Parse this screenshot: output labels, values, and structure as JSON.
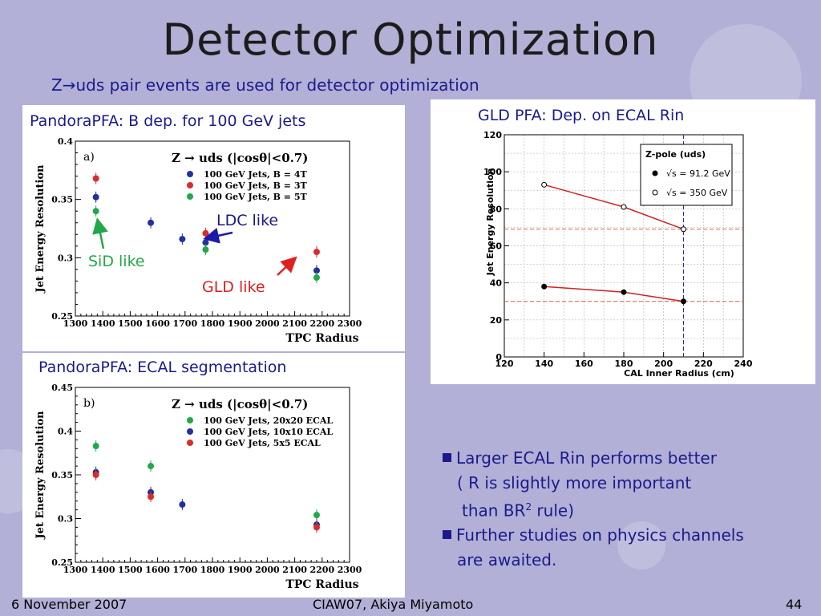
{
  "slide": {
    "title": "Detector Optimization",
    "subtitle": "Z→uds pair events are used for detector optimization"
  },
  "annotations": {
    "ldc": "LDC like",
    "sid": "SiD like",
    "gld": "GLD like"
  },
  "bullets": {
    "b1_line1": "Larger ECAL Rin performs better",
    "b1_line2": "( R is slightly more important",
    "b1_line3_pre": "than BR",
    "b1_line3_sup": "2",
    "b1_line3_post": " rule)",
    "b2_line1": "Further studies on physics channels",
    "b2_line2": "are awaited."
  },
  "footer": {
    "date": "6 November 2007",
    "center": "CIAW07, Akiya Miyamoto",
    "page": "44"
  },
  "colors": {
    "blue": "#22329a",
    "red": "#dc2b2b",
    "green": "#22a84a",
    "text_blue": "#1a1a8c"
  },
  "chart_data": [
    {
      "type": "scatter",
      "caption": "PandoraPFA: B dep. for 100 GeV jets",
      "panel_label": "a)",
      "title": "Z → uds (|cosθ|<0.7)",
      "xlabel": "TPC Radius",
      "ylabel": "Jet Energy Resolution",
      "xlim": [
        1300,
        2300
      ],
      "ylim": [
        0.25,
        0.4
      ],
      "xticks": [
        1300,
        1400,
        1500,
        1600,
        1700,
        1800,
        1900,
        2000,
        2100,
        2200,
        2300
      ],
      "yticks": [
        0.25,
        0.3,
        0.35,
        0.4
      ],
      "ytick_labels": [
        "0.25",
        "0.3",
        "0.35",
        "0.4"
      ],
      "grid": false,
      "legend_position": "top-right",
      "series": [
        {
          "name": "100 GeV Jets, B = 4T",
          "color": "#22329a",
          "x": [
            1375,
            1575,
            1690,
            1775,
            2180
          ],
          "y": [
            0.352,
            0.33,
            0.316,
            0.313,
            0.289
          ]
        },
        {
          "name": "100 GeV Jets, B = 3T",
          "color": "#dc2b2b",
          "x": [
            1375,
            1775,
            2180
          ],
          "y": [
            0.368,
            0.321,
            0.305
          ]
        },
        {
          "name": "100 GeV Jets, B = 5T",
          "color": "#22a84a",
          "x": [
            1375,
            1775,
            2180
          ],
          "y": [
            0.34,
            0.307,
            0.283
          ]
        }
      ]
    },
    {
      "type": "line",
      "caption": "GLD PFA: Dep. on ECAL Rin",
      "xlabel": "CAL Inner Radius (cm)",
      "ylabel": "Jet Energy Resolution",
      "xlim": [
        120,
        240
      ],
      "ylim": [
        0,
        120
      ],
      "xticks": [
        120,
        140,
        160,
        180,
        200,
        220,
        240
      ],
      "yticks": [
        0,
        20,
        40,
        60,
        80,
        100,
        120
      ],
      "grid": true,
      "legend_title": "Z-pole (uds)",
      "legend_position": "top-right",
      "reference_lines": {
        "vertical_x": 210,
        "horizontal_y": [
          69,
          30
        ]
      },
      "series": [
        {
          "name": "√s = 91.2 GeV",
          "marker": "filled",
          "x": [
            140,
            180,
            210
          ],
          "y": [
            38,
            35,
            30
          ]
        },
        {
          "name": "√s = 350 GeV",
          "marker": "open",
          "x": [
            140,
            180,
            210
          ],
          "y": [
            93,
            81,
            69
          ]
        }
      ]
    },
    {
      "type": "scatter",
      "caption": "PandoraPFA: ECAL segmentation",
      "panel_label": "b)",
      "title": "Z → uds (|cosθ|<0.7)",
      "xlabel": "TPC Radius",
      "ylabel": "Jet Energy Resolution",
      "xlim": [
        1300,
        2300
      ],
      "ylim": [
        0.25,
        0.45
      ],
      "xticks": [
        1300,
        1400,
        1500,
        1600,
        1700,
        1800,
        1900,
        2000,
        2100,
        2200,
        2300
      ],
      "yticks": [
        0.25,
        0.3,
        0.35,
        0.4,
        0.45
      ],
      "ytick_labels": [
        "0.25",
        "0.3",
        "0.35",
        "0.4",
        "0.45"
      ],
      "grid": false,
      "legend_position": "top-right",
      "series": [
        {
          "name": "100 GeV Jets, 20x20 ECAL",
          "color": "#22a84a",
          "x": [
            1375,
            1575,
            2180
          ],
          "y": [
            0.383,
            0.36,
            0.304
          ]
        },
        {
          "name": "100 GeV Jets, 10x10 ECAL",
          "color": "#22329a",
          "x": [
            1375,
            1575,
            1690,
            2180
          ],
          "y": [
            0.353,
            0.33,
            0.316,
            0.293
          ]
        },
        {
          "name": "100 GeV Jets, 5x5 ECAL",
          "color": "#dc2b2b",
          "x": [
            1375,
            1575,
            2180
          ],
          "y": [
            0.35,
            0.325,
            0.29
          ]
        }
      ]
    }
  ]
}
